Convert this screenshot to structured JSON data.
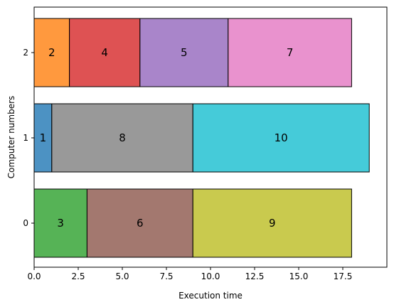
{
  "chart_data": {
    "type": "bar",
    "orientation": "horizontal-stacked",
    "xlabel": "Execution time",
    "ylabel": "Computer numbers",
    "xlim": [
      0,
      20
    ],
    "x_ticks": [
      0,
      2.5,
      5,
      7.5,
      10,
      12.5,
      15,
      17.5
    ],
    "x_tick_labels": [
      "0.0",
      "2.5",
      "5.0",
      "7.5",
      "10.0",
      "12.5",
      "15.0",
      "17.5"
    ],
    "categories": [
      "0",
      "1",
      "2"
    ],
    "grid": false,
    "tasks": [
      {
        "computer": 0,
        "label": "3",
        "start": 0,
        "end": 3,
        "color": "#2ca02c"
      },
      {
        "computer": 0,
        "label": "6",
        "start": 3,
        "end": 9,
        "color": "#8c564b"
      },
      {
        "computer": 0,
        "label": "9",
        "start": 9,
        "end": 18,
        "color": "#bcbd22"
      },
      {
        "computer": 1,
        "label": "1",
        "start": 0,
        "end": 1,
        "color": "#1f77b4"
      },
      {
        "computer": 1,
        "label": "8",
        "start": 1,
        "end": 9,
        "color": "#7f7f7f"
      },
      {
        "computer": 1,
        "label": "10",
        "start": 9,
        "end": 19,
        "color": "#17becf"
      },
      {
        "computer": 2,
        "label": "2",
        "start": 0,
        "end": 2,
        "color": "#ff7f0e"
      },
      {
        "computer": 2,
        "label": "4",
        "start": 2,
        "end": 6,
        "color": "#d62728"
      },
      {
        "computer": 2,
        "label": "5",
        "start": 6,
        "end": 11,
        "color": "#9467bd"
      },
      {
        "computer": 2,
        "label": "7",
        "start": 11,
        "end": 18,
        "color": "#e377c2"
      }
    ]
  }
}
